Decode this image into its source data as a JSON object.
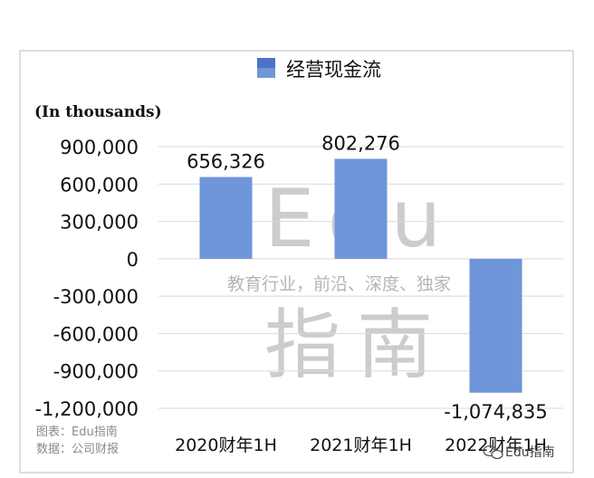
{
  "chart_data": {
    "type": "bar",
    "title": "",
    "unit_note": "(In thousands)",
    "categories": [
      "2020财年1H",
      "2021财年1H",
      "2022财年1H"
    ],
    "series": [
      {
        "name": "经营现金流",
        "values": [
          656326,
          802276,
          -1074835
        ],
        "color": "#6e96d8"
      }
    ],
    "data_labels": [
      "656,326",
      "802,276",
      "-1,074,835"
    ],
    "y_ticks": [
      "900,000",
      "600,000",
      "300,000",
      "0",
      "-300,000",
      "-600,000",
      "-900,000",
      "-1,200,000"
    ],
    "y_tick_values": [
      900000,
      600000,
      300000,
      0,
      -300000,
      -600000,
      -900000,
      -1200000
    ],
    "ylim": [
      -1200000,
      900000
    ],
    "grid": true,
    "legend_position": "top",
    "legend_color": "#4a72c8"
  },
  "watermark": {
    "main": "Edu",
    "tagline": "教育行业，前沿、深度、独家",
    "chinese": "指南"
  },
  "source": {
    "chart_credit": "图表：Edu指南",
    "data_credit": "数据：公司财报"
  },
  "badge": {
    "text": "Edu指南"
  }
}
